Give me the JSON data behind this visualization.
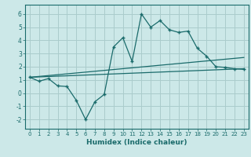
{
  "title": "",
  "xlabel": "Humidex (Indice chaleur)",
  "bg_color": "#cce8e8",
  "grid_color": "#aacccc",
  "line_color": "#1a6b6b",
  "xlim": [
    -0.5,
    23.5
  ],
  "ylim": [
    -2.7,
    6.7
  ],
  "xticks": [
    0,
    1,
    2,
    3,
    4,
    5,
    6,
    7,
    8,
    9,
    10,
    11,
    12,
    13,
    14,
    15,
    16,
    17,
    18,
    19,
    20,
    21,
    22,
    23
  ],
  "yticks": [
    -2,
    -1,
    0,
    1,
    2,
    3,
    4,
    5,
    6
  ],
  "main_x": [
    0,
    1,
    2,
    3,
    4,
    5,
    6,
    7,
    8,
    9,
    10,
    11,
    12,
    13,
    14,
    15,
    16,
    17,
    18,
    19,
    20,
    21,
    22,
    23
  ],
  "main_y": [
    1.2,
    0.9,
    1.1,
    0.55,
    0.5,
    -0.55,
    -2.0,
    -0.65,
    -0.1,
    3.5,
    4.2,
    2.4,
    6.0,
    5.0,
    5.5,
    4.8,
    4.6,
    4.7,
    3.4,
    2.8,
    2.0,
    1.95,
    1.85,
    1.8
  ],
  "trend1_x": [
    0,
    23
  ],
  "trend1_y": [
    1.2,
    2.7
  ],
  "trend2_x": [
    0,
    23
  ],
  "trend2_y": [
    1.2,
    1.85
  ]
}
